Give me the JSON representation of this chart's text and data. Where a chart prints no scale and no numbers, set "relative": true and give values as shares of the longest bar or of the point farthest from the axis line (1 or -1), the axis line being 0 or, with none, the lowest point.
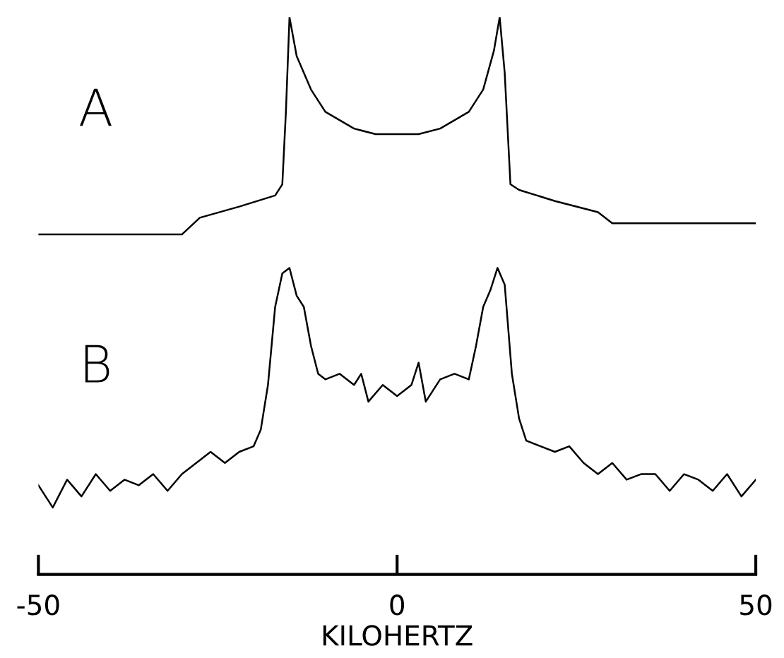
{
  "chart_data": {
    "type": "line",
    "relative": true,
    "xlim": [
      -50,
      50
    ],
    "xticks": [
      -50,
      0,
      50
    ],
    "xlabel": "KILOHERTZ",
    "legend": false,
    "grid": false,
    "series": [
      {
        "name": "A",
        "color": "#000000",
        "x": [
          -50,
          -40,
          -30,
          -27.5,
          -22,
          -17,
          -16,
          -15.5,
          -15,
          -14,
          -12,
          -10,
          -6,
          -3,
          0,
          3,
          6,
          10,
          12,
          13.5,
          14.3,
          15,
          15.8,
          17,
          22,
          28,
          30,
          35,
          40,
          50
        ],
        "values": [
          0.61,
          0.61,
          0.61,
          0.64,
          0.66,
          0.68,
          0.7,
          0.83,
          1.0,
          0.93,
          0.87,
          0.83,
          0.8,
          0.79,
          0.79,
          0.79,
          0.8,
          0.83,
          0.87,
          0.94,
          1.0,
          0.9,
          0.7,
          0.69,
          0.67,
          0.65,
          0.63,
          0.63,
          0.63,
          0.63
        ]
      },
      {
        "name": "B",
        "color": "#000000",
        "x": [
          -50,
          -48,
          -46,
          -44,
          -42,
          -40,
          -38,
          -36,
          -34,
          -32,
          -30,
          -28,
          -26,
          -24,
          -22,
          -20,
          -19,
          -18,
          -17,
          -16,
          -15,
          -14,
          -13,
          -12,
          -11,
          -10,
          -8,
          -6,
          -5,
          -4,
          -2,
          0,
          2,
          3,
          4,
          6,
          8,
          10,
          11,
          12,
          13,
          14,
          15,
          16,
          17,
          18,
          20,
          22,
          24,
          26,
          28,
          30,
          32,
          34,
          36,
          38,
          40,
          42,
          44,
          46,
          48,
          50
        ],
        "values": [
          0.16,
          0.12,
          0.17,
          0.14,
          0.18,
          0.15,
          0.17,
          0.16,
          0.18,
          0.15,
          0.18,
          0.2,
          0.22,
          0.2,
          0.22,
          0.23,
          0.26,
          0.34,
          0.48,
          0.54,
          0.55,
          0.5,
          0.48,
          0.41,
          0.36,
          0.35,
          0.36,
          0.34,
          0.36,
          0.31,
          0.34,
          0.32,
          0.34,
          0.38,
          0.31,
          0.35,
          0.36,
          0.35,
          0.41,
          0.48,
          0.51,
          0.55,
          0.52,
          0.36,
          0.28,
          0.24,
          0.23,
          0.22,
          0.23,
          0.2,
          0.18,
          0.2,
          0.17,
          0.18,
          0.18,
          0.15,
          0.18,
          0.17,
          0.15,
          0.18,
          0.14,
          0.17
        ]
      }
    ]
  }
}
